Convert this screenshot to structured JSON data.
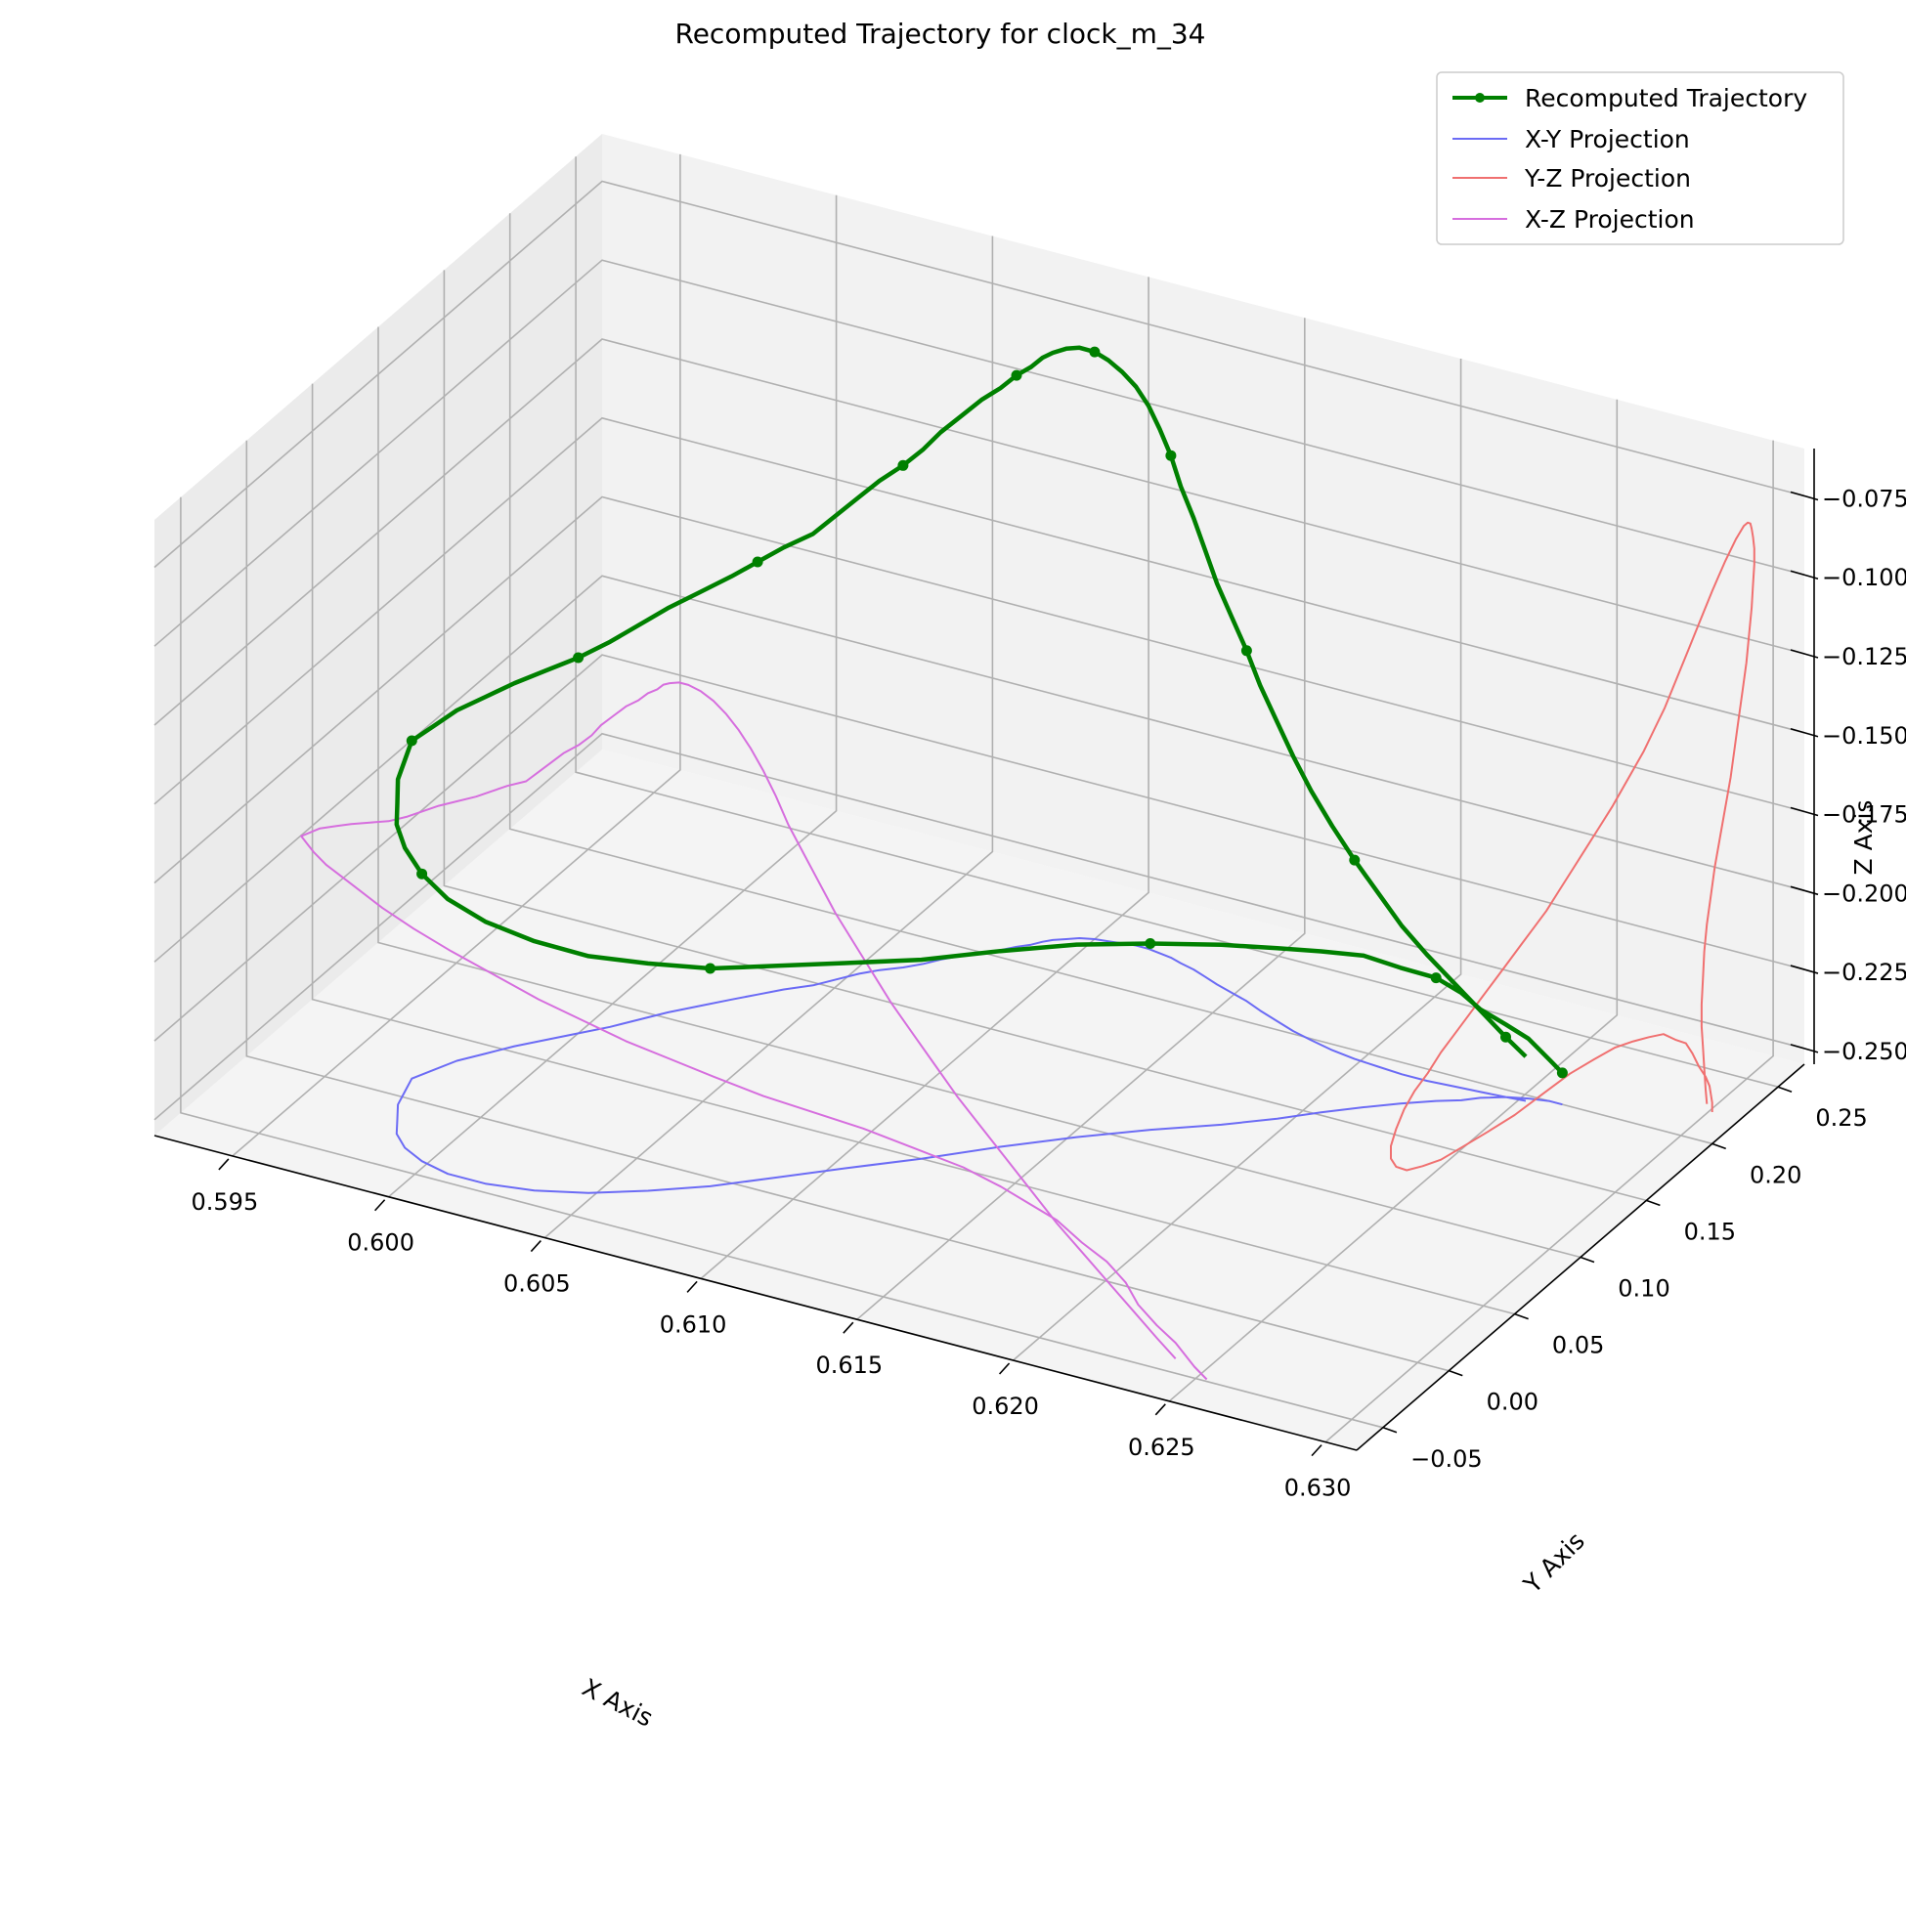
{
  "colors": {
    "trajectory": "#008000",
    "xy_projection": "#6b6bf5",
    "yz_projection": "#f07070",
    "xz_projection": "#d66ede",
    "pane_back": "#f2f2f2",
    "pane_side": "#ebebeb",
    "pane_floor": "#f4f4f4",
    "grid": "#b0b0b0"
  },
  "chart_data": {
    "type": "line",
    "projection": "3d",
    "title": "Recomputed Trajectory for clock_m_34",
    "xlabel": "X Axis",
    "ylabel": "Y Axis",
    "zlabel": "Z Axis",
    "xlim": [
      0.5925,
      0.631
    ],
    "ylim": [
      -0.07,
      0.27
    ],
    "zlim": [
      -0.255,
      -0.06
    ],
    "xticks": [
      0.595,
      0.6,
      0.605,
      0.61,
      0.615,
      0.62,
      0.625,
      0.63
    ],
    "xtick_labels": [
      "0.595",
      "0.600",
      "0.605",
      "0.610",
      "0.615",
      "0.620",
      "0.625",
      "0.630"
    ],
    "yticks": [
      -0.05,
      0.0,
      0.05,
      0.1,
      0.15,
      0.2,
      0.25
    ],
    "ytick_labels": [
      "−0.05",
      "0.00",
      "0.05",
      "0.10",
      "0.15",
      "0.20",
      "0.25"
    ],
    "zticks": [
      -0.25,
      -0.225,
      -0.2,
      -0.175,
      -0.15,
      -0.125,
      -0.1,
      -0.075
    ],
    "ztick_labels": [
      "−0.250",
      "−0.225",
      "−0.200",
      "−0.175",
      "−0.150",
      "−0.125",
      "−0.100",
      "−0.075"
    ],
    "grid": true,
    "legend_position": "top-right",
    "series": [
      {
        "name": "Recomputed Trajectory",
        "kind": "trajectory",
        "x": [
          0.6262,
          0.6258,
          0.6252,
          0.6246,
          0.624,
          0.6236,
          0.623,
          0.6222,
          0.6214,
          0.6205,
          0.6196,
          0.6184,
          0.6168,
          0.6152,
          0.6136,
          0.612,
          0.6104,
          0.609,
          0.6076,
          0.6062,
          0.6048,
          0.6034,
          0.602,
          0.6008,
          0.5998,
          0.599,
          0.5984,
          0.598,
          0.5976,
          0.5974,
          0.5972,
          0.5975,
          0.5978,
          0.5983,
          0.5988,
          0.5994,
          0.6,
          0.6006,
          0.6011,
          0.6016,
          0.6022,
          0.6028,
          0.6033,
          0.6038,
          0.6044,
          0.6048,
          0.6052,
          0.6056,
          0.6061,
          0.6065,
          0.6068,
          0.6072,
          0.6076,
          0.608,
          0.6083,
          0.6086,
          0.6088,
          0.609,
          0.6093,
          0.6096,
          0.61,
          0.6104,
          0.6108,
          0.6112,
          0.6116,
          0.612,
          0.6124,
          0.6128,
          0.6133,
          0.6138,
          0.6143,
          0.6149,
          0.6155,
          0.6161,
          0.6168,
          0.6175,
          0.6182,
          0.619,
          0.6198,
          0.6206,
          0.6214,
          0.6222,
          0.623,
          0.6238,
          0.6246,
          0.6252
        ],
        "y": [
          0.2,
          0.2,
          0.198,
          0.195,
          0.19,
          0.185,
          0.18,
          0.172,
          0.163,
          0.152,
          0.14,
          0.126,
          0.11,
          0.092,
          0.072,
          0.05,
          0.03,
          0.012,
          -0.006,
          -0.02,
          -0.032,
          -0.04,
          -0.044,
          -0.044,
          -0.04,
          -0.034,
          -0.026,
          -0.016,
          -0.006,
          0.004,
          0.014,
          0.024,
          0.034,
          0.044,
          0.054,
          0.064,
          0.074,
          0.084,
          0.094,
          0.104,
          0.114,
          0.124,
          0.132,
          0.14,
          0.148,
          0.156,
          0.164,
          0.17,
          0.176,
          0.182,
          0.188,
          0.194,
          0.2,
          0.205,
          0.21,
          0.214,
          0.218,
          0.221,
          0.224,
          0.227,
          0.229,
          0.23,
          0.231,
          0.232,
          0.232,
          0.231,
          0.23,
          0.228,
          0.226,
          0.223,
          0.22,
          0.217,
          0.214,
          0.21,
          0.206,
          0.202,
          0.199,
          0.196,
          0.194,
          0.193,
          0.192,
          0.192,
          0.193,
          0.194,
          0.195,
          0.196
        ],
        "z": [
          -0.245,
          -0.242,
          -0.236,
          -0.232,
          -0.227,
          -0.221,
          -0.216,
          -0.212,
          -0.207,
          -0.204,
          -0.201,
          -0.198,
          -0.196,
          -0.194,
          -0.193,
          -0.192,
          -0.19,
          -0.188,
          -0.186,
          -0.183,
          -0.18,
          -0.176,
          -0.172,
          -0.168,
          -0.164,
          -0.16,
          -0.157,
          -0.155,
          -0.152,
          -0.15,
          -0.148,
          -0.146,
          -0.144,
          -0.142,
          -0.14,
          -0.138,
          -0.136,
          -0.133,
          -0.13,
          -0.127,
          -0.124,
          -0.121,
          -0.118,
          -0.115,
          -0.112,
          -0.108,
          -0.104,
          -0.1,
          -0.096,
          -0.092,
          -0.088,
          -0.084,
          -0.08,
          -0.077,
          -0.074,
          -0.072,
          -0.07,
          -0.069,
          -0.068,
          -0.068,
          -0.069,
          -0.071,
          -0.074,
          -0.078,
          -0.083,
          -0.089,
          -0.096,
          -0.104,
          -0.112,
          -0.12,
          -0.128,
          -0.136,
          -0.144,
          -0.152,
          -0.16,
          -0.168,
          -0.176,
          -0.184,
          -0.192,
          -0.2,
          -0.208,
          -0.215,
          -0.222,
          -0.229,
          -0.236,
          -0.241
        ]
      },
      {
        "name": "X-Y Projection",
        "kind": "xy"
      },
      {
        "name": "Y-Z Projection",
        "kind": "yz"
      },
      {
        "name": "X-Z Projection",
        "kind": "xz"
      }
    ]
  }
}
